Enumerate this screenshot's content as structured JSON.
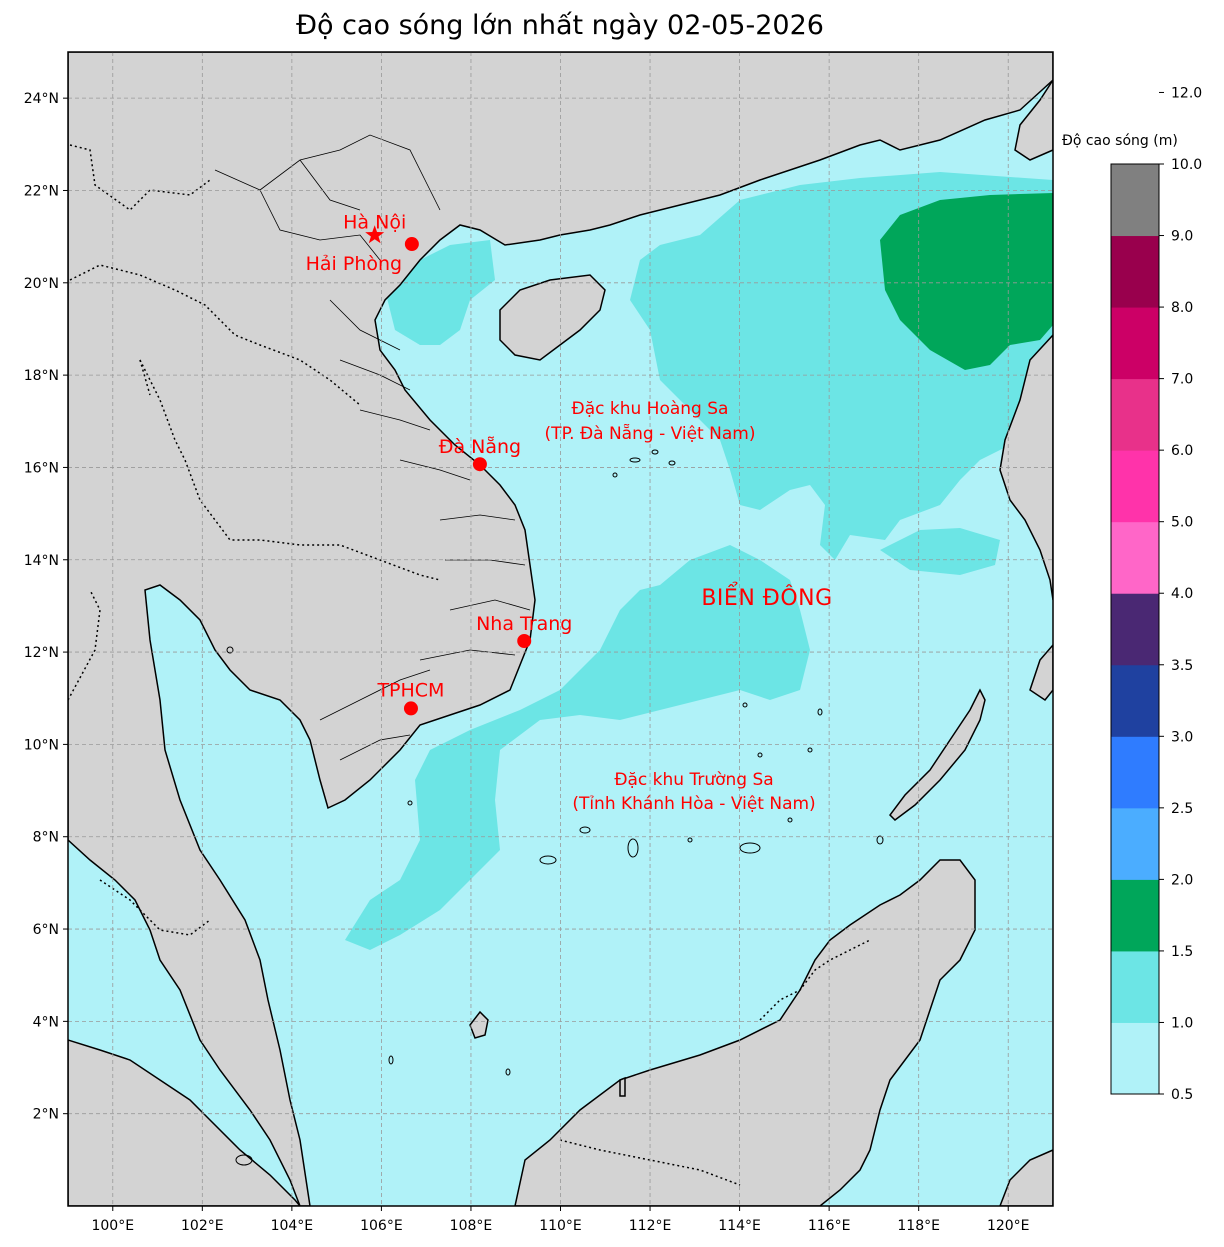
{
  "title": "Độ cao sóng lớn nhất ngày 02-05-2026",
  "map": {
    "lon_range": [
      99,
      121
    ],
    "lat_range": [
      0,
      25
    ],
    "lon_ticks": [
      {
        "value": 100,
        "label": "100°E"
      },
      {
        "value": 102,
        "label": "102°E"
      },
      {
        "value": 104,
        "label": "104°E"
      },
      {
        "value": 106,
        "label": "106°E"
      },
      {
        "value": 108,
        "label": "108°E"
      },
      {
        "value": 110,
        "label": "110°E"
      },
      {
        "value": 112,
        "label": "112°E"
      },
      {
        "value": 114,
        "label": "114°E"
      },
      {
        "value": 116,
        "label": "116°E"
      },
      {
        "value": 118,
        "label": "118°E"
      },
      {
        "value": 120,
        "label": "120°E"
      }
    ],
    "lat_ticks": [
      {
        "value": 2,
        "label": "2°N"
      },
      {
        "value": 4,
        "label": "4°N"
      },
      {
        "value": 6,
        "label": "6°N"
      },
      {
        "value": 8,
        "label": "8°N"
      },
      {
        "value": 10,
        "label": "10°N"
      },
      {
        "value": 12,
        "label": "12°N"
      },
      {
        "value": 14,
        "label": "14°N"
      },
      {
        "value": 16,
        "label": "16°N"
      },
      {
        "value": 18,
        "label": "18°N"
      },
      {
        "value": 20,
        "label": "20°N"
      },
      {
        "value": 22,
        "label": "22°N"
      },
      {
        "value": 24,
        "label": "24°N"
      }
    ],
    "colors": {
      "land": "#d3d3d3",
      "sea_low": "#b0f2f8",
      "sea_mid": "#6ce5e5",
      "sea_high": "#00a65a",
      "marker": "#ff0000"
    },
    "cities": [
      {
        "name": "Hà Nội",
        "lon": 105.85,
        "lat": 21.03,
        "marker": "star"
      },
      {
        "name": "Hải Phòng",
        "lon": 106.68,
        "lat": 20.84,
        "marker": "dot"
      },
      {
        "name": "Đà Nẵng",
        "lon": 108.2,
        "lat": 16.07,
        "marker": "dot"
      },
      {
        "name": "Nha Trang",
        "lon": 109.19,
        "lat": 12.24,
        "marker": "dot"
      },
      {
        "name": "TPHCM",
        "lon": 106.66,
        "lat": 10.78,
        "marker": "dot"
      }
    ],
    "regions": {
      "hoang_sa_line1": "Đặc khu Hoàng Sa",
      "hoang_sa_line2": "(TP. Đà Nẵng - Việt Nam)",
      "truong_sa_line1": "Đặc khu Trường Sa",
      "truong_sa_line2": "(Tỉnh Khánh Hòa - Việt Nam)",
      "sea_name": "BIỂN ĐÔNG"
    }
  },
  "colorbar": {
    "title": "Độ cao sóng (m)",
    "bounds": [
      0.5,
      1.0,
      1.5,
      2.0,
      2.5,
      3.0,
      3.5,
      4.0,
      5.0,
      6.0,
      7.0,
      8.0,
      9.0,
      10.0,
      12.0
    ],
    "tick_labels": [
      "0.5",
      "1.0",
      "1.5",
      "2.0",
      "2.5",
      "3.0",
      "3.5",
      "4.0",
      "5.0",
      "6.0",
      "7.0",
      "8.0",
      "9.0",
      "10.0",
      "12.0"
    ],
    "colors": [
      "#b0f2f8",
      "#6ce5e5",
      "#00a65a",
      "#4badff",
      "#2f7cff",
      "#1f41a0",
      "#4a2873",
      "#ff66c8",
      "#ff33aa",
      "#e8318a",
      "#cc0066",
      "#99004d",
      "#808080"
    ]
  }
}
